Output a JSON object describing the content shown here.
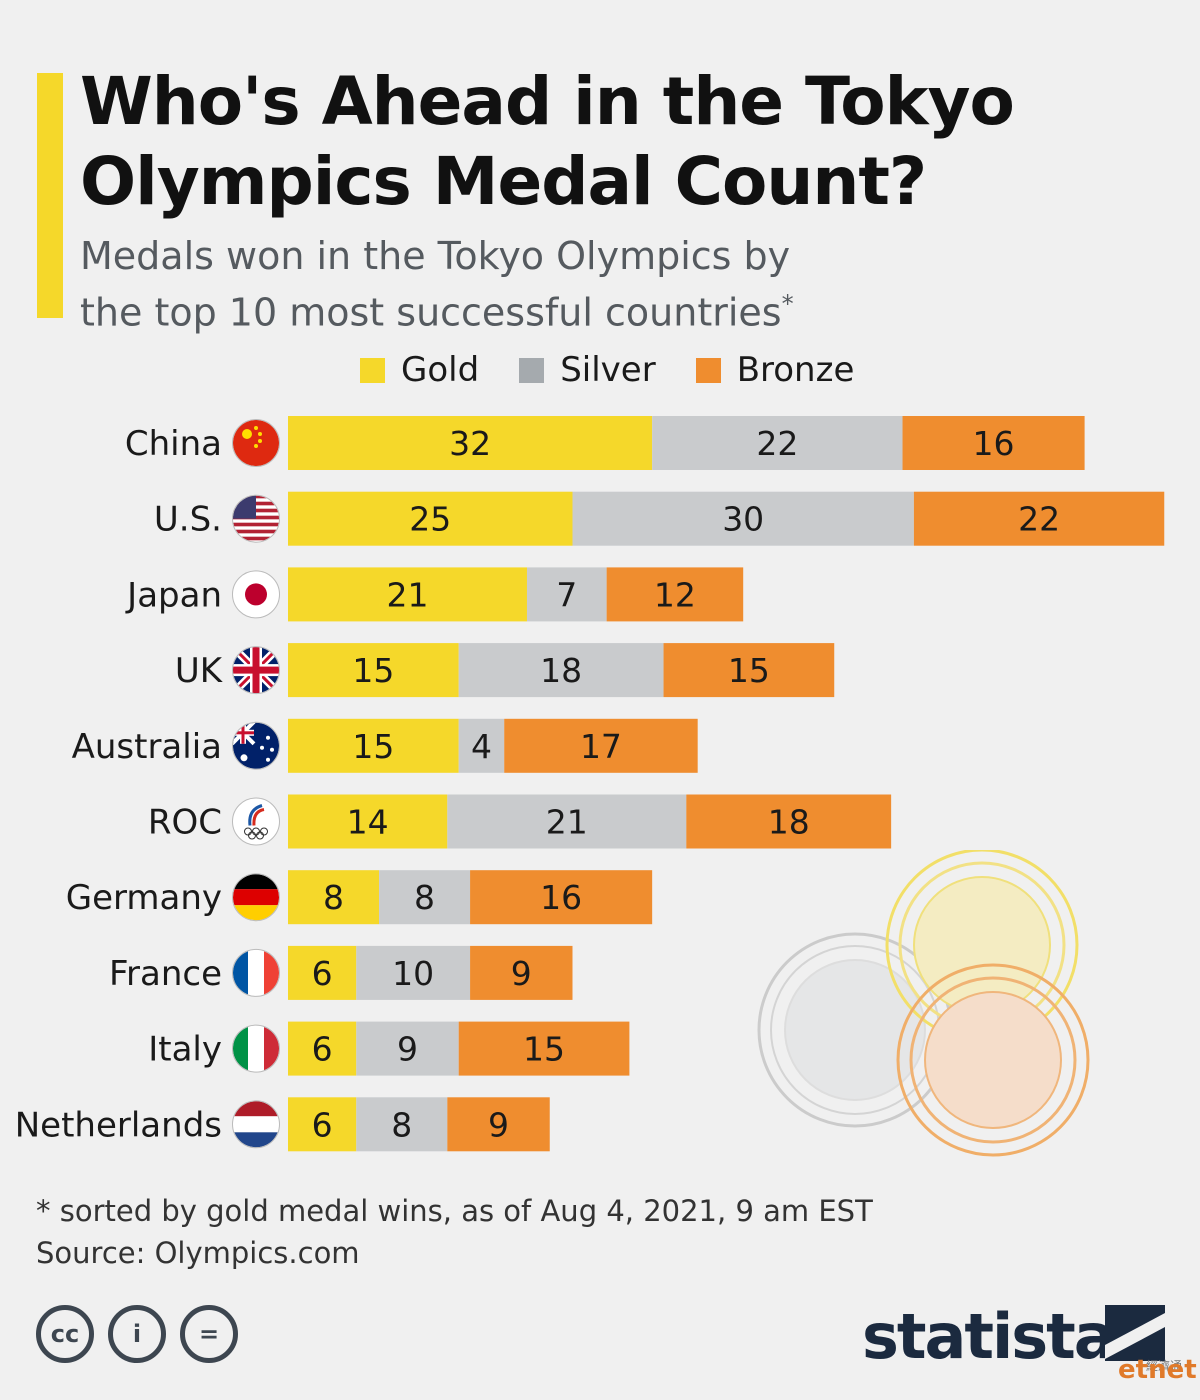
{
  "title": "Who's Ahead in the Tokyo Olympics Medal Count?",
  "subtitle_line1": "Medals won in the Tokyo Olympics by",
  "subtitle_line2": "the top 10 most successful countries",
  "subtitle_marker": "*",
  "legend": [
    {
      "label": "Gold",
      "color": "#f5d82a"
    },
    {
      "label": "Silver",
      "color": "#a5aaae"
    },
    {
      "label": "Bronze",
      "color": "#ef8d2f"
    }
  ],
  "colors": {
    "gold": "#f5d82a",
    "silver": "#c9cbcd",
    "bronze": "#ef8d2f",
    "title_bar": "#f5d82a",
    "brand": "#1b2a3f"
  },
  "chart_data": {
    "type": "bar",
    "orientation": "horizontal",
    "stacked": true,
    "categories": [
      "China",
      "U.S.",
      "Japan",
      "UK",
      "Australia",
      "ROC",
      "Germany",
      "France",
      "Italy",
      "Netherlands"
    ],
    "flag_icons": [
      "china-flag-icon",
      "us-flag-icon",
      "japan-flag-icon",
      "uk-flag-icon",
      "australia-flag-icon",
      "roc-flag-icon",
      "germany-flag-icon",
      "france-flag-icon",
      "italy-flag-icon",
      "netherlands-flag-icon"
    ],
    "series": [
      {
        "name": "Gold",
        "values": [
          32,
          25,
          21,
          15,
          15,
          14,
          8,
          6,
          6,
          6
        ]
      },
      {
        "name": "Silver",
        "values": [
          22,
          30,
          7,
          18,
          4,
          21,
          8,
          10,
          9,
          8
        ]
      },
      {
        "name": "Bronze",
        "values": [
          16,
          22,
          12,
          15,
          17,
          18,
          16,
          9,
          15,
          9
        ]
      }
    ],
    "xlim": [
      0,
      77
    ],
    "data_labels": true,
    "legend_position": "top",
    "grid": false
  },
  "footnote_line1": "* sorted by gold medal wins, as of Aug 4, 2021, 9 am EST",
  "footnote_line2": "Source: Olympics.com",
  "cc_icons": [
    "cc-icon",
    "attribution-icon",
    "no-derivatives-icon"
  ],
  "cc_labels": [
    "cc",
    "i",
    "="
  ],
  "brand": "statista",
  "partner": "etnet",
  "partner_zh": "經濟通"
}
